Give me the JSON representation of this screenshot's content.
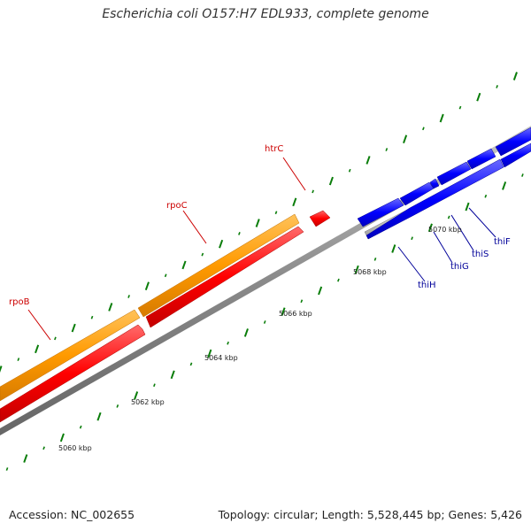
{
  "title": "Escherichia coli O157:H7 EDL933, complete genome",
  "footer": {
    "accession": "Accession: NC_002655",
    "summary": "Topology: circular; Length: 5,528,445 bp; Genes: 5,426"
  },
  "colors": {
    "forward_gene": "#ff9a00",
    "reverse_gene": "#ff0000",
    "blue_gene": "#0000ff",
    "grey_gene": "#bbbbbb",
    "backbone": "#8a8a8a",
    "tick": "#0a7d0a",
    "red_label": "#cc0000",
    "blue_label": "#000099"
  },
  "scale_labels": [
    "5060 kbp",
    "5062 kbp",
    "5064 kbp",
    "5066 kbp",
    "5068 kbp",
    "5070 kbp"
  ],
  "gene_labels": {
    "red": [
      "rpoB",
      "rpoC",
      "htrC"
    ],
    "blue": [
      "thiH",
      "thiG",
      "thiS",
      "thiF"
    ]
  }
}
